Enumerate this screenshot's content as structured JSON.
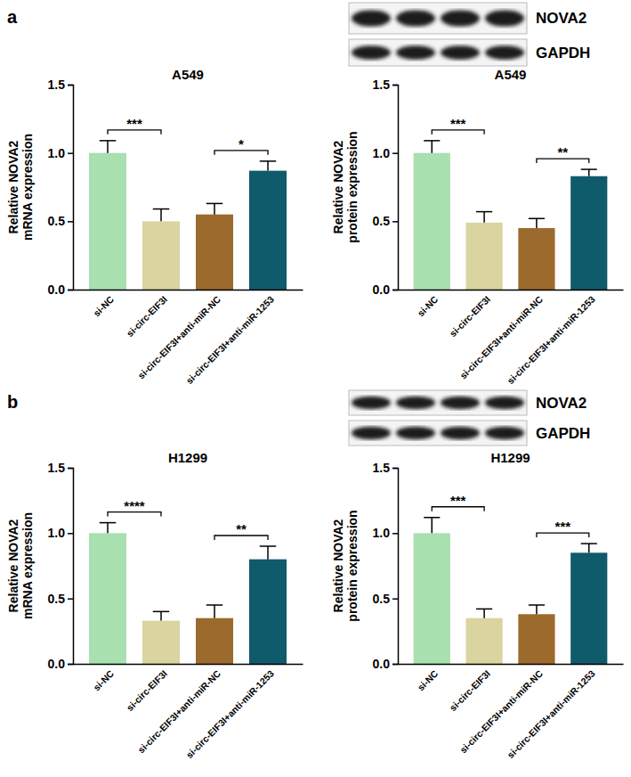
{
  "chart_data": [
    {
      "type": "bar",
      "title": "A549",
      "ylabel": "Relative NOVA2\nmRNA expression",
      "categories": [
        "si-NC",
        "si-circ-EIF3I",
        "si-circ-EIF3I+anti-miR-NC",
        "si-circ-EIF3I+anti-miR-1253"
      ],
      "values": [
        1.0,
        0.5,
        0.55,
        0.87
      ],
      "errors": [
        0.09,
        0.09,
        0.08,
        0.07
      ],
      "colors": [
        "#a8e0b0",
        "#d9d4a0",
        "#9c6a2c",
        "#0f5a6b"
      ],
      "ylim": [
        0,
        1.5
      ],
      "yticks": [
        {
          "value": 0,
          "label": "0.0"
        },
        0.5,
        {
          "value": 1,
          "label": "1.0"
        },
        1.5
      ],
      "annotations": [
        {
          "text": "***",
          "between": [
            0,
            1
          ]
        },
        {
          "text": "*",
          "between": [
            2,
            3
          ]
        }
      ]
    },
    {
      "type": "bar",
      "title": "A549",
      "ylabel": "Relative NOVA2\nprotein expression",
      "categories": [
        "si-NC",
        "si-circ-EIF3I",
        "si-circ-EIF3I+anti-miR-NC",
        "si-circ-EIF3I+anti-miR-1253"
      ],
      "values": [
        1.0,
        0.49,
        0.45,
        0.83
      ],
      "errors": [
        0.09,
        0.08,
        0.07,
        0.05
      ],
      "colors": [
        "#a8e0b0",
        "#d9d4a0",
        "#9c6a2c",
        "#0f5a6b"
      ],
      "ylim": [
        0,
        1.5
      ],
      "yticks": [
        {
          "value": 0,
          "label": "0.0"
        },
        0.5,
        {
          "value": 1,
          "label": "1.0"
        },
        1.5
      ],
      "annotations": [
        {
          "text": "***",
          "between": [
            0,
            1
          ]
        },
        {
          "text": "**",
          "between": [
            2,
            3
          ]
        }
      ]
    },
    {
      "type": "bar",
      "title": "H1299",
      "ylabel": "Relative NOVA2\nmRNA expression",
      "categories": [
        "si-NC",
        "si-circ-EIF3I",
        "si-circ-EIF3I+anti-miR-NC",
        "si-circ-EIF3I+anti-miR-1253"
      ],
      "values": [
        1.0,
        0.33,
        0.35,
        0.8
      ],
      "errors": [
        0.08,
        0.07,
        0.1,
        0.1
      ],
      "colors": [
        "#a8e0b0",
        "#d9d4a0",
        "#9c6a2c",
        "#0f5a6b"
      ],
      "ylim": [
        0,
        1.5
      ],
      "yticks": [
        {
          "value": 0,
          "label": "0.0"
        },
        0.5,
        {
          "value": 1,
          "label": "1.0"
        },
        1.5
      ],
      "annotations": [
        {
          "text": "****",
          "between": [
            0,
            1
          ]
        },
        {
          "text": "**",
          "between": [
            2,
            3
          ]
        }
      ]
    },
    {
      "type": "bar",
      "title": "H1299",
      "ylabel": "Relative NOVA2\nprotein expression",
      "categories": [
        "si-NC",
        "si-circ-EIF3I",
        "si-circ-EIF3I+anti-miR-NC",
        "si-circ-EIF3I+anti-miR-1253"
      ],
      "values": [
        1.0,
        0.35,
        0.38,
        0.85
      ],
      "errors": [
        0.12,
        0.07,
        0.07,
        0.07
      ],
      "colors": [
        "#a8e0b0",
        "#d9d4a0",
        "#9c6a2c",
        "#0f5a6b"
      ],
      "ylim": [
        0,
        1.5
      ],
      "yticks": [
        {
          "value": 0,
          "label": "0.0"
        },
        0.5,
        {
          "value": 1,
          "label": "1.0"
        },
        1.5
      ],
      "annotations": [
        {
          "text": "***",
          "between": [
            0,
            1
          ]
        },
        {
          "text": "***",
          "between": [
            2,
            3
          ]
        }
      ]
    }
  ],
  "figure": {
    "panels": [
      {
        "label": "a",
        "blot_labels": [
          "NOVA2",
          "GAPDH"
        ]
      },
      {
        "label": "b",
        "blot_labels": [
          "NOVA2",
          "GAPDH"
        ]
      }
    ]
  }
}
